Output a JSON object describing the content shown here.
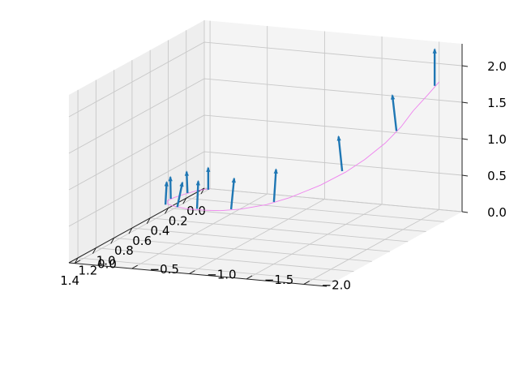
{
  "chart_data": {
    "type": "3d-quiver",
    "title": "",
    "xlabel": "",
    "ylabel": "",
    "zlabel": "",
    "xlim": [
      0,
      1.5
    ],
    "ylim": [
      -2.2,
      0.05
    ],
    "zlim": [
      0,
      2.3
    ],
    "x_ticks": [
      "0.0",
      "0.2",
      "0.4",
      "0.6",
      "0.8",
      "1.0",
      "1.2",
      "1.4"
    ],
    "y_ticks": [
      "0.0",
      "−0.5",
      "−1.0",
      "−1.5",
      "−2.0"
    ],
    "z_ticks": [
      "0.0",
      "0.5",
      "1.0",
      "1.5",
      "2.0"
    ],
    "grid": true,
    "pane_color": "#f2f2f2",
    "curve_color": "#ee82ee",
    "arrow_color": "#1f77b4",
    "curve": {
      "x": [
        0,
        0.15,
        0.35,
        0.55,
        0.75,
        0.95,
        1.1,
        1.25,
        1.4,
        1.47,
        1.5,
        1.47,
        1.4,
        1.25,
        1.1,
        0.95,
        0.75,
        0.55,
        0.35,
        0.15,
        0
      ],
      "y": [
        0,
        -0.01,
        -0.05,
        -0.12,
        -0.22,
        -0.38,
        -0.55,
        -0.78,
        -1.05,
        -1.25,
        -1.45,
        -1.65,
        -1.8,
        -1.95,
        -2.05,
        -2.1,
        -2.12,
        -2.1,
        -2.05,
        -2.02,
        -2.0
      ],
      "z": [
        0,
        0.08,
        0.17,
        0.27,
        0.38,
        0.49,
        0.59,
        0.69,
        0.81,
        0.88,
        0.95,
        1.02,
        1.09,
        1.18,
        1.27,
        1.35,
        1.44,
        1.52,
        1.6,
        1.68,
        1.75
      ]
    },
    "arrows": [
      {
        "x": 0.02,
        "y": 0.0,
        "z": 0.0,
        "u": 0.0,
        "v": 0.0,
        "w": 0.3
      },
      {
        "x": 0.3,
        "y": -0.04,
        "z": 0.15,
        "u": 0.01,
        "v": 0.0,
        "w": 0.3
      },
      {
        "x": 0.6,
        "y": -0.13,
        "z": 0.29,
        "u": 0.03,
        "v": -0.02,
        "w": 0.32
      },
      {
        "x": 0.9,
        "y": -0.32,
        "z": 0.44,
        "u": 0.05,
        "v": -0.05,
        "w": 0.35
      },
      {
        "x": 1.15,
        "y": -0.62,
        "z": 0.62,
        "u": 0.07,
        "v": -0.1,
        "w": 0.4
      },
      {
        "x": 1.35,
        "y": -0.95,
        "z": 0.78,
        "u": 0.05,
        "v": -0.05,
        "w": 0.42
      },
      {
        "x": 1.48,
        "y": -1.35,
        "z": 0.92,
        "u": 0.03,
        "v": -0.05,
        "w": 0.45
      },
      {
        "x": 1.45,
        "y": -1.7,
        "z": 1.05,
        "u": 0.04,
        "v": -0.05,
        "w": 0.48
      },
      {
        "x": 1.1,
        "y": -2.02,
        "z": 1.28,
        "u": 0.04,
        "v": 0.0,
        "w": 0.5
      },
      {
        "x": 0.6,
        "y": -2.1,
        "z": 1.5,
        "u": 0.02,
        "v": 0.02,
        "w": 0.5
      },
      {
        "x": 0.05,
        "y": -2.0,
        "z": 1.73,
        "u": 0.0,
        "v": 0.0,
        "w": 0.5
      }
    ]
  }
}
